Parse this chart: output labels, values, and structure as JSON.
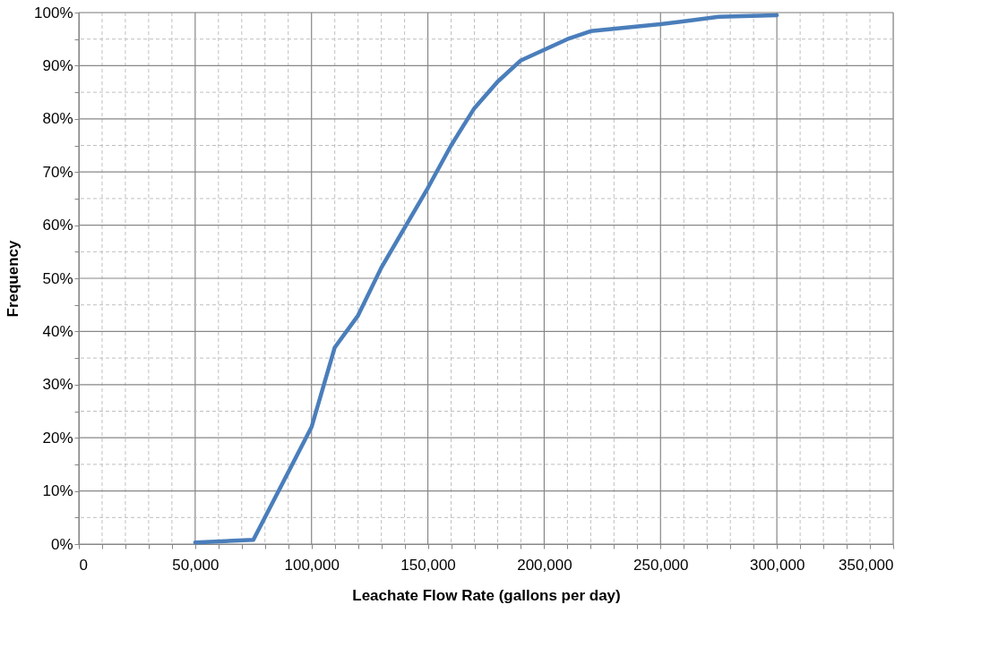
{
  "chart_data": {
    "type": "line",
    "xlabel": "Leachate Flow Rate (gallons per day)",
    "ylabel": "Frequency",
    "x": [
      50000,
      75000,
      100000,
      110000,
      120000,
      130000,
      140000,
      150000,
      160000,
      170000,
      180000,
      190000,
      210000,
      220000,
      250000,
      275000,
      300000
    ],
    "series": [
      {
        "color": "#4a7ebb",
        "values": [
          0.3,
          0.8,
          22,
          37,
          43,
          52,
          59.5,
          67,
          75,
          82,
          87,
          91,
          95,
          96.5,
          97.8,
          99.2,
          99.5
        ]
      }
    ],
    "xlim": [
      0,
      350000
    ],
    "ylim": [
      0,
      100
    ],
    "xticks": [
      {
        "value": 0,
        "label": "0"
      },
      {
        "value": 10000,
        "label": null
      },
      {
        "value": 20000,
        "label": null
      },
      {
        "value": 30000,
        "label": null
      },
      {
        "value": 40000,
        "label": null
      },
      {
        "value": 50000,
        "label": "50,000"
      },
      {
        "value": 60000,
        "label": null
      },
      {
        "value": 70000,
        "label": null
      },
      {
        "value": 80000,
        "label": null
      },
      {
        "value": 90000,
        "label": null
      },
      {
        "value": 100000,
        "label": "100,000"
      },
      {
        "value": 110000,
        "label": null
      },
      {
        "value": 120000,
        "label": null
      },
      {
        "value": 130000,
        "label": null
      },
      {
        "value": 140000,
        "label": null
      },
      {
        "value": 150000,
        "label": "150,000"
      },
      {
        "value": 160000,
        "label": null
      },
      {
        "value": 170000,
        "label": null
      },
      {
        "value": 180000,
        "label": null
      },
      {
        "value": 190000,
        "label": null
      },
      {
        "value": 200000,
        "label": "200,000"
      },
      {
        "value": 210000,
        "label": null
      },
      {
        "value": 220000,
        "label": null
      },
      {
        "value": 230000,
        "label": null
      },
      {
        "value": 240000,
        "label": null
      },
      {
        "value": 250000,
        "label": "250,000"
      },
      {
        "value": 260000,
        "label": null
      },
      {
        "value": 270000,
        "label": null
      },
      {
        "value": 280000,
        "label": null
      },
      {
        "value": 290000,
        "label": null
      },
      {
        "value": 300000,
        "label": "300,000"
      },
      {
        "value": 310000,
        "label": null
      },
      {
        "value": 320000,
        "label": null
      },
      {
        "value": 330000,
        "label": null
      },
      {
        "value": 340000,
        "label": null
      },
      {
        "value": 350000,
        "label": "350,000"
      }
    ],
    "yticks": [
      {
        "value": 0,
        "label": "0%"
      },
      {
        "value": 5,
        "label": null
      },
      {
        "value": 10,
        "label": "10%"
      },
      {
        "value": 15,
        "label": null
      },
      {
        "value": 20,
        "label": "20%"
      },
      {
        "value": 25,
        "label": null
      },
      {
        "value": 30,
        "label": "30%"
      },
      {
        "value": 35,
        "label": null
      },
      {
        "value": 40,
        "label": "40%"
      },
      {
        "value": 45,
        "label": null
      },
      {
        "value": 50,
        "label": "50%"
      },
      {
        "value": 55,
        "label": null
      },
      {
        "value": 60,
        "label": "60%"
      },
      {
        "value": 65,
        "label": null
      },
      {
        "value": 70,
        "label": "70%"
      },
      {
        "value": 75,
        "label": null
      },
      {
        "value": 80,
        "label": "80%"
      },
      {
        "value": 85,
        "label": null
      },
      {
        "value": 90,
        "label": "90%"
      },
      {
        "value": 95,
        "label": null
      },
      {
        "value": 100,
        "label": "100%"
      }
    ],
    "grid": true,
    "marker": "none",
    "line_style": "solid"
  }
}
